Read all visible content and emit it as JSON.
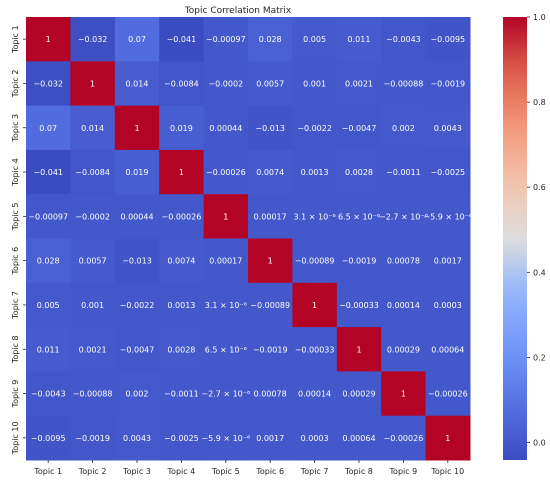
{
  "chart_data": {
    "type": "heatmap",
    "title": "Topic Correlation Matrix",
    "x_labels": [
      "Topic 1",
      "Topic 2",
      "Topic 3",
      "Topic 4",
      "Topic 5",
      "Topic 6",
      "Topic 7",
      "Topic 8",
      "Topic 9",
      "Topic 10"
    ],
    "y_labels": [
      "Topic 1",
      "Topic 2",
      "Topic 3",
      "Topic 4",
      "Topic 5",
      "Topic 6",
      "Topic 7",
      "Topic 8",
      "Topic 9",
      "Topic 10"
    ],
    "values": [
      [
        1,
        -0.032,
        0.07,
        -0.041,
        -0.00097,
        0.028,
        0.005,
        0.011,
        -0.0043,
        -0.0095
      ],
      [
        -0.032,
        1,
        0.014,
        -0.0084,
        -0.0002,
        0.0057,
        0.001,
        0.0021,
        -0.00088,
        -0.0019
      ],
      [
        0.07,
        0.014,
        1,
        0.019,
        0.00044,
        -0.013,
        -0.0022,
        -0.0047,
        0.002,
        0.0043
      ],
      [
        -0.041,
        -0.0084,
        0.019,
        1,
        -0.00026,
        0.0074,
        0.0013,
        0.0028,
        -0.0011,
        -0.0025
      ],
      [
        -0.00097,
        -0.0002,
        0.00044,
        -0.00026,
        1,
        0.00017,
        3.1e-06,
        6.5e-06,
        -2.7e-06,
        -5.9e-06
      ],
      [
        0.028,
        0.0057,
        -0.013,
        0.0074,
        0.00017,
        1,
        -0.00089,
        -0.0019,
        0.00078,
        0.0017
      ],
      [
        0.005,
        0.001,
        -0.0022,
        0.0013,
        3.1e-06,
        -0.00089,
        1,
        -0.00033,
        0.00014,
        0.0003
      ],
      [
        0.011,
        0.0021,
        -0.0047,
        0.0028,
        6.5e-06,
        -0.0019,
        -0.00033,
        1,
        0.00029,
        0.00064
      ],
      [
        -0.0043,
        -0.00088,
        0.002,
        -0.0011,
        -2.7e-06,
        0.00078,
        0.00014,
        0.00029,
        1,
        -0.00026
      ],
      [
        -0.0095,
        -0.0019,
        0.0043,
        -0.0025,
        -5.9e-06,
        0.0017,
        0.0003,
        0.00064,
        -0.00026,
        1
      ]
    ],
    "annotations": [
      [
        "1",
        "−0.032",
        "0.07",
        "−0.041",
        "−0.00097",
        "0.028",
        "0.005",
        "0.011",
        "−0.0043",
        "−0.0095"
      ],
      [
        "−0.032",
        "1",
        "0.014",
        "−0.0084",
        "−0.0002",
        "0.0057",
        "0.001",
        "0.0021",
        "−0.00088",
        "−0.0019"
      ],
      [
        "0.07",
        "0.014",
        "1",
        "0.019",
        "0.00044",
        "−0.013",
        "−0.0022",
        "−0.0047",
        "0.002",
        "0.0043"
      ],
      [
        "−0.041",
        "−0.0084",
        "0.019",
        "1",
        "−0.00026",
        "0.0074",
        "0.0013",
        "0.0028",
        "−0.0011",
        "−0.0025"
      ],
      [
        "−0.00097",
        "−0.0002",
        "0.00044",
        "−0.00026",
        "1",
        "0.00017",
        "3.1 × 10⁻⁶",
        "6.5 × 10⁻⁶",
        "−2.7 × 10⁻⁶",
        "−5.9 × 10⁻⁶"
      ],
      [
        "0.028",
        "0.0057",
        "−0.013",
        "0.0074",
        "0.00017",
        "1",
        "−0.00089",
        "−0.0019",
        "0.00078",
        "0.0017"
      ],
      [
        "0.005",
        "0.001",
        "−0.0022",
        "0.0013",
        "3.1 × 10⁻⁶",
        "−0.00089",
        "1",
        "−0.00033",
        "0.00014",
        "0.0003"
      ],
      [
        "0.011",
        "0.0021",
        "−0.0047",
        "0.0028",
        "6.5 × 10⁻⁶",
        "−0.0019",
        "−0.00033",
        "1",
        "0.00029",
        "0.00064"
      ],
      [
        "−0.0043",
        "−0.00088",
        "0.002",
        "−0.0011",
        "−2.7 × 10⁻⁶",
        "0.00078",
        "0.00014",
        "0.00029",
        "1",
        "−0.00026"
      ],
      [
        "−0.0095",
        "−0.0019",
        "0.0043",
        "−0.0025",
        "−5.9 × 10⁻⁶",
        "0.0017",
        "0.0003",
        "0.00064",
        "−0.00026",
        "1"
      ]
    ],
    "colormap": "coolwarm",
    "vmin": -0.041,
    "vmax": 1,
    "colorbar_ticks": [
      1.0,
      0.8,
      0.6,
      0.4,
      0.2,
      0.0
    ],
    "colorbar_tick_labels": [
      "1.0",
      "0.8",
      "0.6",
      "0.4",
      "0.2",
      "0.0"
    ],
    "colors": {
      "low": "#3b4cc0",
      "mid": "#dddddd",
      "high": "#b40426"
    }
  }
}
